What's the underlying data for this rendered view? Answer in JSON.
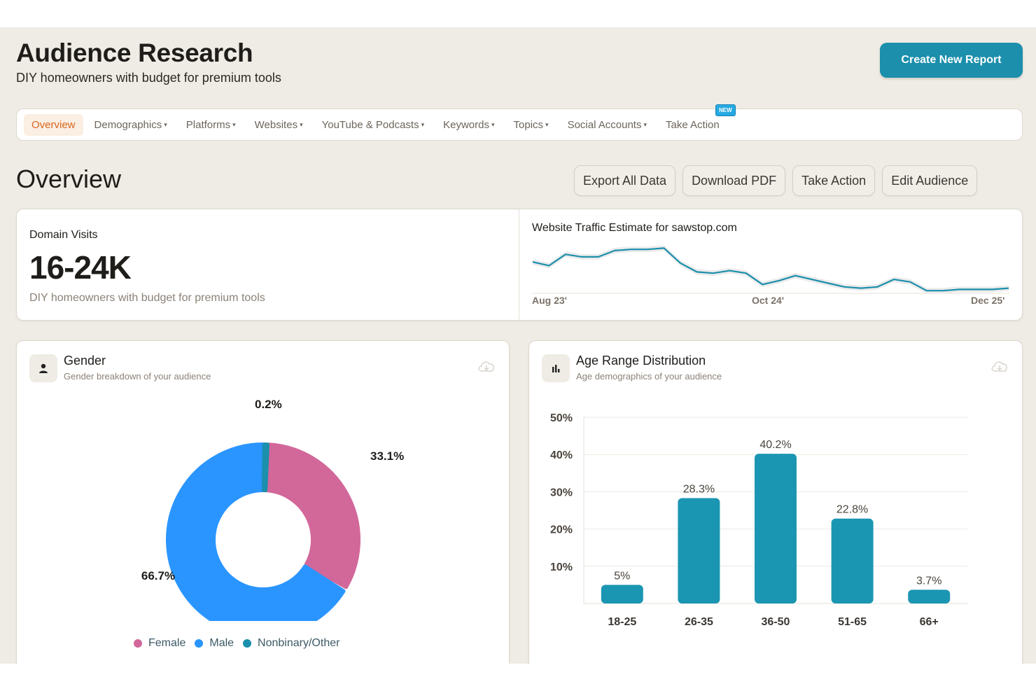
{
  "header": {
    "title": "Audience Research",
    "subtitle": "DIY homeowners with budget for premium tools",
    "create_button": "Create New Report"
  },
  "nav": {
    "tabs": [
      {
        "label": "Overview",
        "active": true,
        "dropdown": false
      },
      {
        "label": "Demographics",
        "dropdown": true
      },
      {
        "label": "Platforms",
        "dropdown": true
      },
      {
        "label": "Websites",
        "dropdown": true
      },
      {
        "label": "YouTube & Podcasts",
        "dropdown": true
      },
      {
        "label": "Keywords",
        "dropdown": true
      },
      {
        "label": "Topics",
        "dropdown": true
      },
      {
        "label": "Social Accounts",
        "dropdown": true
      },
      {
        "label": "Take Action",
        "dropdown": false,
        "badge": "NEW"
      }
    ]
  },
  "overview": {
    "title": "Overview",
    "actions": [
      "Export All Data",
      "Download PDF",
      "Take Action",
      "Edit Audience"
    ]
  },
  "domain_visits": {
    "label": "Domain Visits",
    "value": "16-24K",
    "description": "DIY homeowners with budget for premium tools"
  },
  "traffic": {
    "title": "Website Traffic Estimate for sawstop.com",
    "ticks": [
      "Aug 23'",
      "Oct 24'",
      "Dec 25'"
    ],
    "line_color": "#1b8fac",
    "chart_data": {
      "type": "line",
      "x_start": "Aug 23'",
      "x_end": "Dec 25'",
      "values": [
        22,
        19,
        28,
        26,
        26,
        31,
        32,
        32,
        33,
        21,
        14,
        13,
        15,
        13,
        4,
        7,
        11,
        8,
        5,
        2,
        1,
        2,
        8,
        6,
        -1,
        -1,
        0,
        0,
        0,
        1
      ]
    }
  },
  "gender": {
    "title": "Gender",
    "subtitle": "Gender breakdown of your audience",
    "icon": "person-icon",
    "legend": [
      "Female",
      "Male",
      "Nonbinary/Other"
    ],
    "chart_data": {
      "type": "pie",
      "variant": "donut",
      "labels": [
        "Female",
        "Male",
        "Nonbinary/Other"
      ],
      "values": [
        33.1,
        66.7,
        0.2
      ],
      "value_labels": [
        "33.1%",
        "66.7%",
        "0.2%"
      ],
      "colors": [
        "#d2679a",
        "#2a95ff",
        "#1b8fac"
      ]
    }
  },
  "age": {
    "title": "Age Range Distribution",
    "subtitle": "Age demographics of your audience",
    "icon": "bar-chart-icon",
    "chart_data": {
      "type": "bar",
      "categories": [
        "18-25",
        "26-35",
        "36-50",
        "51-65",
        "66+"
      ],
      "values": [
        5,
        28.3,
        40.2,
        22.8,
        3.7
      ],
      "value_labels": [
        "5%",
        "28.3%",
        "40.2%",
        "22.8%",
        "3.7%"
      ],
      "yticks": [
        "10%",
        "20%",
        "30%",
        "40%",
        "50%"
      ],
      "ylim": [
        0,
        50
      ],
      "grid": true,
      "color": "#1b96b2"
    }
  }
}
